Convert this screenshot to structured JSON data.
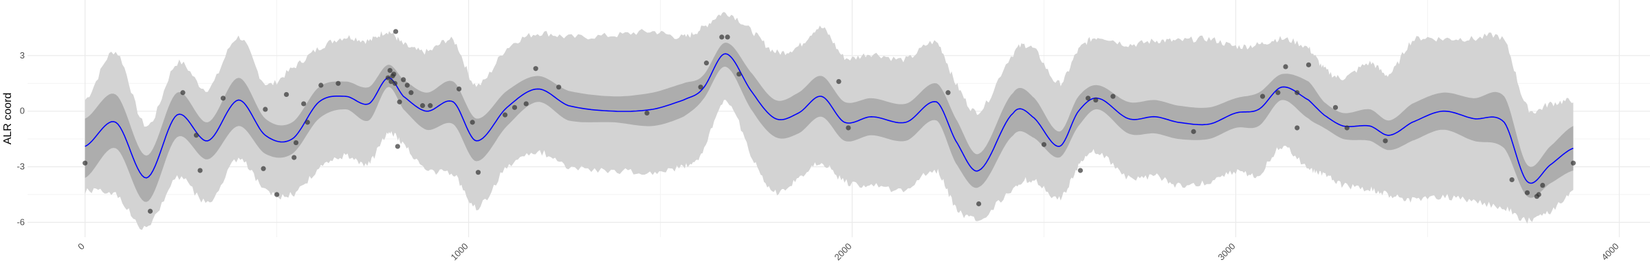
{
  "chart_data": {
    "type": "line",
    "title": "",
    "xlabel": "",
    "ylabel": "ALR coord",
    "xlim": [
      -150,
      4080
    ],
    "ylim": [
      -6.8,
      6.0
    ],
    "x_ticks": [
      0,
      1000,
      2000,
      3000,
      4000
    ],
    "x_tick_labels": [
      "0",
      "1000",
      "2000",
      "3000",
      "4000"
    ],
    "y_ticks": [
      -6,
      -3,
      0,
      3
    ],
    "y_tick_labels": [
      "-6",
      "-3",
      "0",
      "3"
    ],
    "grid": true,
    "colors": {
      "mean_line": "#0000ff",
      "inner_band": "#adadad",
      "outer_band": "#d3d3d3",
      "points": "#333333"
    },
    "mean": {
      "x": [
        0,
        80,
        160,
        240,
        320,
        400,
        470,
        540,
        610,
        680,
        740,
        790,
        830,
        890,
        960,
        1020,
        1100,
        1180,
        1260,
        1380,
        1480,
        1560,
        1610,
        1670,
        1740,
        1800,
        1860,
        1920,
        1980,
        2050,
        2140,
        2220,
        2270,
        2330,
        2420,
        2470,
        2540,
        2590,
        2640,
        2720,
        2790,
        2850,
        2930,
        3000,
        3060,
        3120,
        3190,
        3230,
        3280,
        3350,
        3400,
        3460,
        3540,
        3620,
        3700,
        3760,
        3820,
        3880
      ],
      "y": [
        -1.9,
        -0.6,
        -3.6,
        -0.2,
        -1.6,
        0.6,
        -1.3,
        -1.5,
        0.5,
        0.8,
        0.4,
        1.8,
        0.8,
        0.0,
        0.5,
        -1.6,
        0.2,
        1.2,
        0.3,
        0.0,
        0.1,
        0.6,
        1.2,
        3.1,
        1.0,
        -0.4,
        -0.1,
        0.8,
        -0.6,
        -0.3,
        -0.6,
        0.5,
        -1.6,
        -3.2,
        -0.1,
        -0.3,
        -1.9,
        0.0,
        0.7,
        -0.4,
        -0.3,
        -0.6,
        -0.7,
        -0.1,
        0.1,
        1.3,
        0.6,
        -0.2,
        -0.8,
        -0.8,
        -1.3,
        -0.6,
        0.0,
        -0.4,
        -0.6,
        -3.8,
        -2.9,
        -2.0
      ]
    },
    "inner_band": {
      "x": [
        0,
        80,
        160,
        240,
        320,
        400,
        470,
        540,
        610,
        680,
        740,
        790,
        830,
        890,
        960,
        1020,
        1100,
        1180,
        1260,
        1380,
        1480,
        1560,
        1610,
        1670,
        1740,
        1800,
        1860,
        1920,
        1980,
        2050,
        2140,
        2220,
        2270,
        2330,
        2420,
        2470,
        2540,
        2590,
        2640,
        2720,
        2790,
        2850,
        2930,
        3000,
        3060,
        3120,
        3190,
        3230,
        3280,
        3350,
        3400,
        3460,
        3540,
        3620,
        3700,
        3760,
        3820,
        3880
      ],
      "lower": [
        -3.6,
        -2.0,
        -4.9,
        -1.4,
        -2.6,
        -0.8,
        -2.3,
        -2.3,
        -0.4,
        0.1,
        -0.5,
        1.3,
        0.1,
        -1.0,
        -0.7,
        -2.7,
        -0.8,
        0.5,
        -0.5,
        -0.6,
        -0.8,
        -0.3,
        0.6,
        2.4,
        0.0,
        -1.4,
        -1.2,
        -0.3,
        -1.6,
        -1.3,
        -1.6,
        -0.5,
        -2.8,
        -4.1,
        -1.3,
        -1.4,
        -2.5,
        -0.8,
        0.1,
        -1.2,
        -1.2,
        -1.5,
        -1.5,
        -0.9,
        -0.8,
        0.6,
        -0.4,
        -0.9,
        -1.5,
        -1.6,
        -2.1,
        -1.6,
        -1.0,
        -1.6,
        -2.0,
        -4.6,
        -3.9,
        -3.2
      ],
      "upper": [
        -0.4,
        0.9,
        -2.4,
        1.0,
        -0.6,
        1.8,
        -0.4,
        -0.6,
        1.3,
        1.6,
        1.3,
        2.5,
        1.7,
        1.0,
        1.6,
        -0.4,
        1.1,
        1.9,
        1.1,
        0.8,
        1.0,
        1.5,
        1.9,
        3.7,
        2.0,
        0.6,
        1.0,
        1.9,
        0.5,
        0.7,
        0.4,
        1.5,
        -0.4,
        -2.3,
        1.0,
        0.8,
        -1.1,
        0.8,
        1.4,
        0.5,
        0.6,
        0.3,
        0.2,
        0.7,
        1.0,
        2.0,
        1.6,
        0.5,
        -0.1,
        0.1,
        -0.5,
        0.4,
        1.0,
        0.7,
        0.8,
        -2.9,
        -1.9,
        -0.8
      ]
    },
    "outer_band": {
      "x": [
        0,
        80,
        160,
        240,
        320,
        400,
        470,
        540,
        610,
        680,
        740,
        790,
        830,
        890,
        960,
        1020,
        1100,
        1180,
        1260,
        1380,
        1480,
        1560,
        1610,
        1670,
        1740,
        1800,
        1860,
        1920,
        1980,
        2050,
        2140,
        2220,
        2270,
        2330,
        2420,
        2470,
        2540,
        2590,
        2640,
        2720,
        2790,
        2850,
        2930,
        3000,
        3060,
        3120,
        3190,
        3230,
        3280,
        3350,
        3400,
        3460,
        3540,
        3620,
        3700,
        3760,
        3820,
        3880
      ],
      "lower": [
        -4.3,
        -4.5,
        -6.3,
        -3.6,
        -4.9,
        -2.6,
        -4.3,
        -4.5,
        -3.1,
        -2.4,
        -2.8,
        -1.2,
        -1.8,
        -3.2,
        -3.4,
        -5.2,
        -3.0,
        -2.2,
        -3.0,
        -3.2,
        -3.3,
        -3.0,
        -2.2,
        0.6,
        -2.5,
        -4.4,
        -3.6,
        -2.8,
        -3.8,
        -4.0,
        -4.2,
        -3.2,
        -5.2,
        -5.8,
        -4.2,
        -3.7,
        -4.7,
        -3.0,
        -2.2,
        -3.6,
        -3.5,
        -4.0,
        -3.8,
        -3.3,
        -3.4,
        -1.9,
        -3.1,
        -3.4,
        -4.0,
        -4.2,
        -4.5,
        -4.8,
        -4.6,
        -4.9,
        -5.2,
        -5.9,
        -5.4,
        -4.4
      ],
      "upper": [
        0.6,
        3.2,
        -0.8,
        2.6,
        1.2,
        4.0,
        1.5,
        2.3,
        3.4,
        4.0,
        3.8,
        4.3,
        3.6,
        3.2,
        3.8,
        1.4,
        3.4,
        4.2,
        4.0,
        4.1,
        4.3,
        4.0,
        4.5,
        5.3,
        4.3,
        3.2,
        3.5,
        4.5,
        2.9,
        3.1,
        2.8,
        3.7,
        1.5,
        0.0,
        3.1,
        3.4,
        1.5,
        3.3,
        4.0,
        3.6,
        3.8,
        3.8,
        3.9,
        3.5,
        3.6,
        3.9,
        3.4,
        2.3,
        1.8,
        2.6,
        2.0,
        3.8,
        3.9,
        3.9,
        3.8,
        0.2,
        0.4,
        0.6
      ]
    },
    "points": {
      "x": [
        0,
        170,
        255,
        290,
        300,
        360,
        465,
        470,
        500,
        525,
        545,
        550,
        570,
        580,
        615,
        660,
        790,
        795,
        798,
        802,
        805,
        808,
        810,
        815,
        820,
        830,
        840,
        850,
        880,
        900,
        975,
        1010,
        1025,
        1095,
        1120,
        1150,
        1175,
        1235,
        1465,
        1605,
        1620,
        1660,
        1675,
        1705,
        1965,
        1990,
        2250,
        2330,
        2500,
        2595,
        2615,
        2635,
        2680,
        2890,
        3070,
        3110,
        3130,
        3160,
        3160,
        3190,
        3260,
        3290,
        3390,
        3720,
        3760,
        3785,
        3790,
        3800,
        3880
      ],
      "y": [
        -2.8,
        -5.4,
        1.0,
        -1.3,
        -3.2,
        0.7,
        -3.1,
        0.1,
        -4.5,
        0.9,
        -2.5,
        -1.7,
        0.4,
        -0.6,
        1.4,
        1.5,
        1.8,
        2.2,
        1.6,
        1.9,
        2.0,
        1.5,
        4.3,
        -1.9,
        0.5,
        1.7,
        1.4,
        1.0,
        0.3,
        0.3,
        1.2,
        -0.6,
        -3.3,
        -0.2,
        0.2,
        0.4,
        2.3,
        1.3,
        -0.1,
        1.3,
        2.6,
        4.0,
        4.0,
        2.0,
        1.6,
        -0.9,
        1.0,
        -5.0,
        -1.8,
        -3.2,
        0.7,
        0.6,
        0.8,
        -1.1,
        0.8,
        1.0,
        2.4,
        1.0,
        -0.9,
        2.5,
        0.2,
        -0.9,
        -1.6,
        -3.7,
        -4.4,
        -4.6,
        -4.5,
        -4.0,
        -2.8
      ]
    }
  }
}
